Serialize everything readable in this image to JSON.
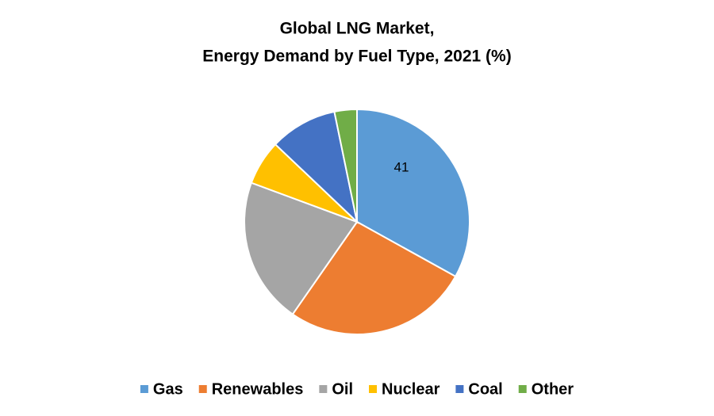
{
  "chart_data": {
    "type": "pie",
    "title": [
      "Global LNG Market,",
      "Energy Demand by Fuel Type, 2021 (%)"
    ],
    "categories": [
      "Gas",
      "Renewables",
      "Oil",
      "Nuclear",
      "Coal",
      "Other"
    ],
    "values": [
      41,
      33,
      26,
      8,
      12,
      4
    ],
    "value_labels": [
      "41",
      null,
      null,
      null,
      null,
      null
    ],
    "colors": [
      "#5b9bd5",
      "#ed7d31",
      "#a5a5a5",
      "#ffc000",
      "#4472c4",
      "#70ad47"
    ],
    "legend": "bottom"
  }
}
